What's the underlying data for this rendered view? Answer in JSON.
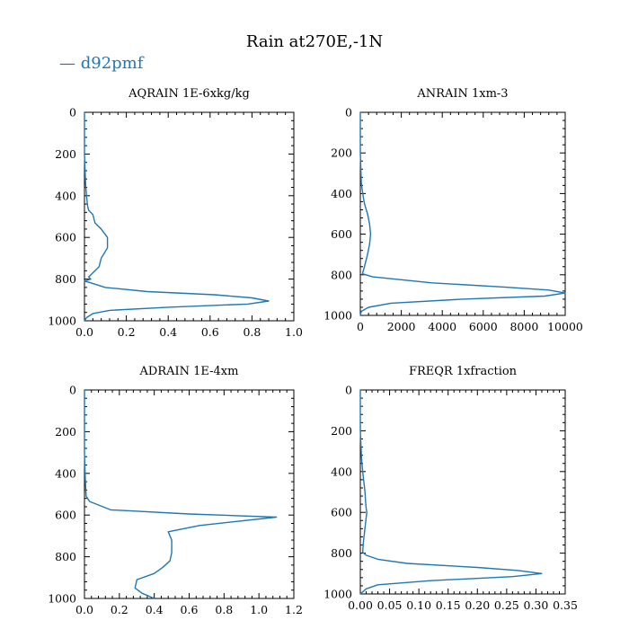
{
  "chart_data": {
    "type": "line",
    "title": "Rain at270E,-1N",
    "legend": [
      {
        "label": "— d92pmf",
        "color": "#1f77b4"
      }
    ],
    "legend_position": "top-left",
    "panels": [
      {
        "id": "aqrain",
        "title": "AQRAIN  1E-6xkg/kg",
        "xlim": [
          0,
          1.0
        ],
        "ylim": [
          1000,
          0
        ],
        "xticks": [
          0.0,
          0.2,
          0.4,
          0.6,
          0.8,
          1.0
        ],
        "xtick_labels": [
          "0.0",
          "0.2",
          "0.4",
          "0.6",
          "0.8",
          "1.0"
        ],
        "yticks": [
          0,
          200,
          400,
          600,
          800,
          1000
        ],
        "ytick_labels": [
          "0",
          "200",
          "400",
          "600",
          "800",
          "1000"
        ],
        "series": [
          {
            "name": "d92pmf",
            "x": [
              0,
              0,
              0.005,
              0.01,
              0.015,
              0.02,
              0.04,
              0.05,
              0.08,
              0.11,
              0.11,
              0.08,
              0.07,
              0.04,
              0.02,
              0.03,
              0.0,
              0.02,
              0.1,
              0.3,
              0.62,
              0.8,
              0.88,
              0.78,
              0.4,
              0.12,
              0.04,
              0.01,
              0.0
            ],
            "y": [
              0,
              200,
              340,
              400,
              450,
              470,
              490,
              530,
              560,
              600,
              650,
              700,
              740,
              770,
              790,
              800,
              810,
              815,
              840,
              860,
              875,
              890,
              905,
              920,
              935,
              950,
              965,
              985,
              1000
            ]
          }
        ]
      },
      {
        "id": "anrain",
        "title": "ANRAIN  1xm-3",
        "xlim": [
          0,
          10000
        ],
        "ylim": [
          1000,
          0
        ],
        "xticks": [
          0,
          2000,
          4000,
          6000,
          8000,
          10000
        ],
        "xtick_labels": [
          "0",
          "2000",
          "4000",
          "6000",
          "8000",
          "10000"
        ],
        "yticks": [
          0,
          200,
          400,
          600,
          800,
          1000
        ],
        "ytick_labels": [
          "0",
          "200",
          "400",
          "600",
          "800",
          "1000"
        ],
        "series": [
          {
            "name": "d92pmf",
            "x": [
              0,
              0,
              50,
              150,
              200,
              350,
              450,
              500,
              450,
              350,
              200,
              100,
              600,
              3500,
              7000,
              9200,
              10000,
              9000,
              5000,
              1500,
              400,
              50,
              0
            ],
            "y": [
              0,
              200,
              350,
              420,
              450,
              500,
              550,
              600,
              650,
              700,
              760,
              795,
              810,
              840,
              860,
              875,
              890,
              905,
              920,
              940,
              960,
              980,
              1000
            ]
          }
        ]
      },
      {
        "id": "adrain",
        "title": "ADRAIN  1E-4xm",
        "xlim": [
          0,
          1.2
        ],
        "ylim": [
          1000,
          0
        ],
        "xticks": [
          0.0,
          0.2,
          0.4,
          0.6,
          0.8,
          1.0,
          1.2
        ],
        "xtick_labels": [
          "0.0",
          "0.2",
          "0.4",
          "0.6",
          "0.8",
          "1.0",
          "1.2"
        ],
        "yticks": [
          0,
          200,
          400,
          600,
          800,
          1000
        ],
        "ytick_labels": [
          "0",
          "200",
          "400",
          "600",
          "800",
          "1000"
        ],
        "series": [
          {
            "name": "d92pmf",
            "x": [
              0,
              0,
              0.005,
              0.01,
              0.03,
              0.15,
              0.6,
              1.1,
              0.66,
              0.48,
              0.5,
              0.5,
              0.49,
              0.45,
              0.4,
              0.3,
              0.29,
              0.33,
              0.4
            ],
            "y": [
              0,
              300,
              440,
              510,
              535,
              575,
              595,
              610,
              650,
              680,
              720,
              780,
              820,
              850,
              880,
              910,
              950,
              975,
              1000
            ]
          }
        ]
      },
      {
        "id": "freqr",
        "title": "FREQR  1xfraction",
        "xlim": [
          0,
          0.35
        ],
        "ylim": [
          1000,
          0
        ],
        "xticks": [
          0.0,
          0.05,
          0.1,
          0.15,
          0.2,
          0.25,
          0.3,
          0.35
        ],
        "xtick_labels": [
          "0.00",
          "0.05",
          "0.10",
          "0.15",
          "0.20",
          "0.25",
          "0.30",
          "0.35"
        ],
        "yticks": [
          0,
          200,
          400,
          600,
          800,
          1000
        ],
        "ytick_labels": [
          "0",
          "200",
          "400",
          "600",
          "800",
          "1000"
        ],
        "series": [
          {
            "name": "d92pmf",
            "x": [
              0,
              0,
              0.002,
              0.004,
              0.006,
              0.008,
              0.009,
              0.01,
              0.011,
              0.009,
              0.007,
              0.005,
              0.004,
              0.01,
              0.03,
              0.08,
              0.2,
              0.27,
              0.31,
              0.26,
              0.12,
              0.03,
              0.01,
              0.0
            ],
            "y": [
              0,
              200,
              330,
              400,
              450,
              500,
              550,
              580,
              600,
              650,
              700,
              750,
              795,
              810,
              830,
              850,
              870,
              885,
              900,
              915,
              935,
              955,
              975,
              1000
            ]
          }
        ]
      }
    ]
  }
}
